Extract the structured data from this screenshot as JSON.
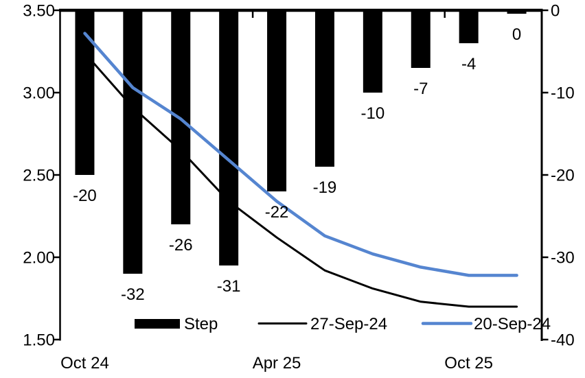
{
  "chart_data": {
    "type": "combo",
    "title": "",
    "description": "Dual-axis chart: black bars (Step, right axis, basis points per meeting) with two implied policy-rate paths (left axis, percent).",
    "n_categories": 10,
    "x_tick_labels": [
      {
        "index": 0,
        "label": "Oct 24"
      },
      {
        "index": 4,
        "label": "Apr 25"
      },
      {
        "index": 8,
        "label": "Oct 25"
      }
    ],
    "bar_series": {
      "name": "Step",
      "axis": "right",
      "color": "#000000",
      "values": [
        -20,
        -32,
        -26,
        -31,
        -22,
        -19,
        -10,
        -7,
        -4,
        0
      ],
      "labels": [
        "-20",
        "-32",
        "-26",
        "-31",
        "-22",
        "-19",
        "-10",
        "-7",
        "-4",
        "0"
      ]
    },
    "line_series": [
      {
        "name": "27-Sep-24",
        "axis": "left",
        "color": "#000000",
        "stroke_width": 3,
        "values": [
          3.24,
          2.91,
          2.65,
          2.34,
          2.12,
          1.92,
          1.81,
          1.73,
          1.7,
          1.7
        ]
      },
      {
        "name": "20-Sep-24",
        "axis": "left",
        "color": "#5585d0",
        "stroke_width": 4.5,
        "values": [
          3.36,
          3.03,
          2.84,
          2.59,
          2.34,
          2.13,
          2.02,
          1.94,
          1.89,
          1.89
        ]
      }
    ],
    "left_axis": {
      "min": 1.5,
      "max": 3.5,
      "tick_values": [
        3.5,
        3.0,
        2.5,
        2.0,
        1.5
      ],
      "ticks": [
        "3.50",
        "3.00",
        "2.50",
        "2.00",
        "1.50"
      ]
    },
    "right_axis": {
      "min": -40,
      "max": 0,
      "tick_values": [
        0,
        -10,
        -20,
        -30,
        -40
      ],
      "ticks": [
        "0",
        "-10",
        "-20",
        "-30",
        "-40"
      ]
    },
    "grid": false,
    "legend": {
      "position": "bottom-inside",
      "items": [
        {
          "label": "Step",
          "type": "bar",
          "color": "#000000"
        },
        {
          "label": "27-Sep-24",
          "type": "line",
          "color": "#000000"
        },
        {
          "label": "20-Sep-24",
          "type": "line",
          "color": "#5585d0"
        }
      ]
    }
  },
  "colors": {
    "background": "#ffffff",
    "text": "#000000",
    "bar": "#000000",
    "line_black": "#000000",
    "line_blue": "#5585d0"
  }
}
